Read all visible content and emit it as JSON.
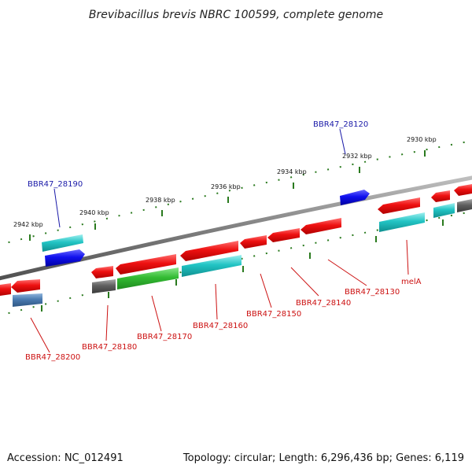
{
  "title": "Brevibacillus brevis NBRC 100599, complete genome",
  "footer": {
    "accession": "Accession: NC_012491",
    "stats": "Topology: circular; Length: 6,296,436 bp; Genes: 6,119"
  },
  "scale": {
    "ticks": [
      {
        "label": "2942 kbp",
        "kbp": 2942
      },
      {
        "label": "2940 kbp",
        "kbp": 2940
      },
      {
        "label": "2938 kbp",
        "kbp": 2938
      },
      {
        "label": "2936 kbp",
        "kbp": 2936
      },
      {
        "label": "2934 kbp",
        "kbp": 2934
      },
      {
        "label": "2932 kbp",
        "kbp": 2932
      },
      {
        "label": "2930 kbp",
        "kbp": 2930
      }
    ]
  },
  "genes": {
    "forward": [
      {
        "label": "BBR47_28190",
        "color": "#1a1aa8"
      },
      {
        "label": "BBR47_28120",
        "color": "#1a1aa8"
      }
    ],
    "reverse": [
      {
        "label": "BBR47_28200",
        "color": "#cc1111"
      },
      {
        "label": "BBR47_28180",
        "color": "#cc1111"
      },
      {
        "label": "BBR47_28170",
        "color": "#cc1111"
      },
      {
        "label": "BBR47_28160",
        "color": "#cc1111"
      },
      {
        "label": "BBR47_28150",
        "color": "#cc1111"
      },
      {
        "label": "BBR47_28140",
        "color": "#cc1111"
      },
      {
        "label": "BBR47_28130",
        "color": "#cc1111"
      },
      {
        "label": "melA",
        "color": "#cc1111"
      }
    ]
  },
  "colors": {
    "backbone": "#808080",
    "tick": "#2a7a1e",
    "gene_red": "#ee1111",
    "gene_cyan": "#22c4c4",
    "gene_blue": "#1010ee",
    "gene_green": "#33bb33",
    "gene_gray": "#606060",
    "gene_steel": "#4a7ab0"
  }
}
